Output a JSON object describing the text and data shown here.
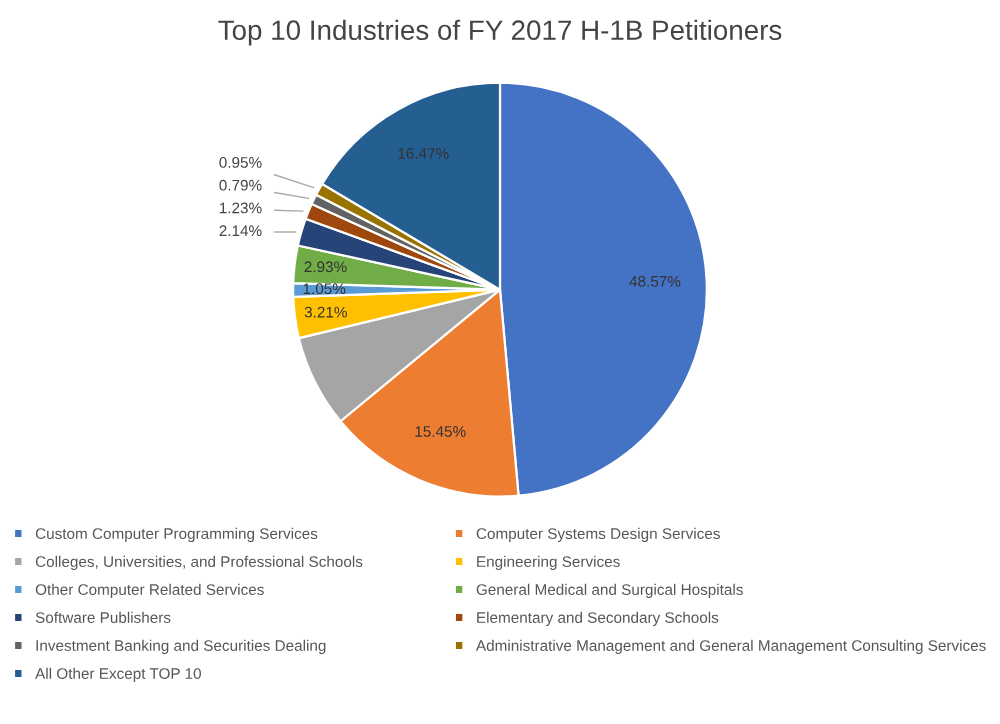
{
  "chart_data": {
    "type": "pie",
    "title": "Top 10 Industries of FY 2017 H-1B Petitioners",
    "categories": [
      "Custom Computer Programming Services",
      "Computer Systems Design Services",
      "Colleges, Universities, and Professional Schools",
      "Engineering Services",
      "Other Computer Related Services",
      "General Medical and Surgical Hospitals",
      "Software Publishers",
      "Elementary and Secondary Schools",
      "Investment Banking and Securities Dealing",
      "Administrative Management and General Management Consulting Services",
      "All Other Except TOP 10"
    ],
    "values": [
      48.57,
      15.45,
      7.21,
      3.21,
      1.05,
      2.93,
      2.14,
      1.23,
      0.79,
      0.95,
      16.47
    ],
    "colors": [
      "#4472c4",
      "#ed7d31",
      "#a5a5a5",
      "#ffc000",
      "#5b9bd5",
      "#70ad47",
      "#264478",
      "#9e480e",
      "#636363",
      "#997300",
      "#255e91"
    ],
    "value_labels": [
      "48.57%",
      "15.45%",
      null,
      "3.21%",
      "1.05%",
      "2.93%",
      "2.14%",
      "1.23%",
      "0.79%",
      "0.95%",
      "16.47%"
    ],
    "legend": "bottom"
  }
}
